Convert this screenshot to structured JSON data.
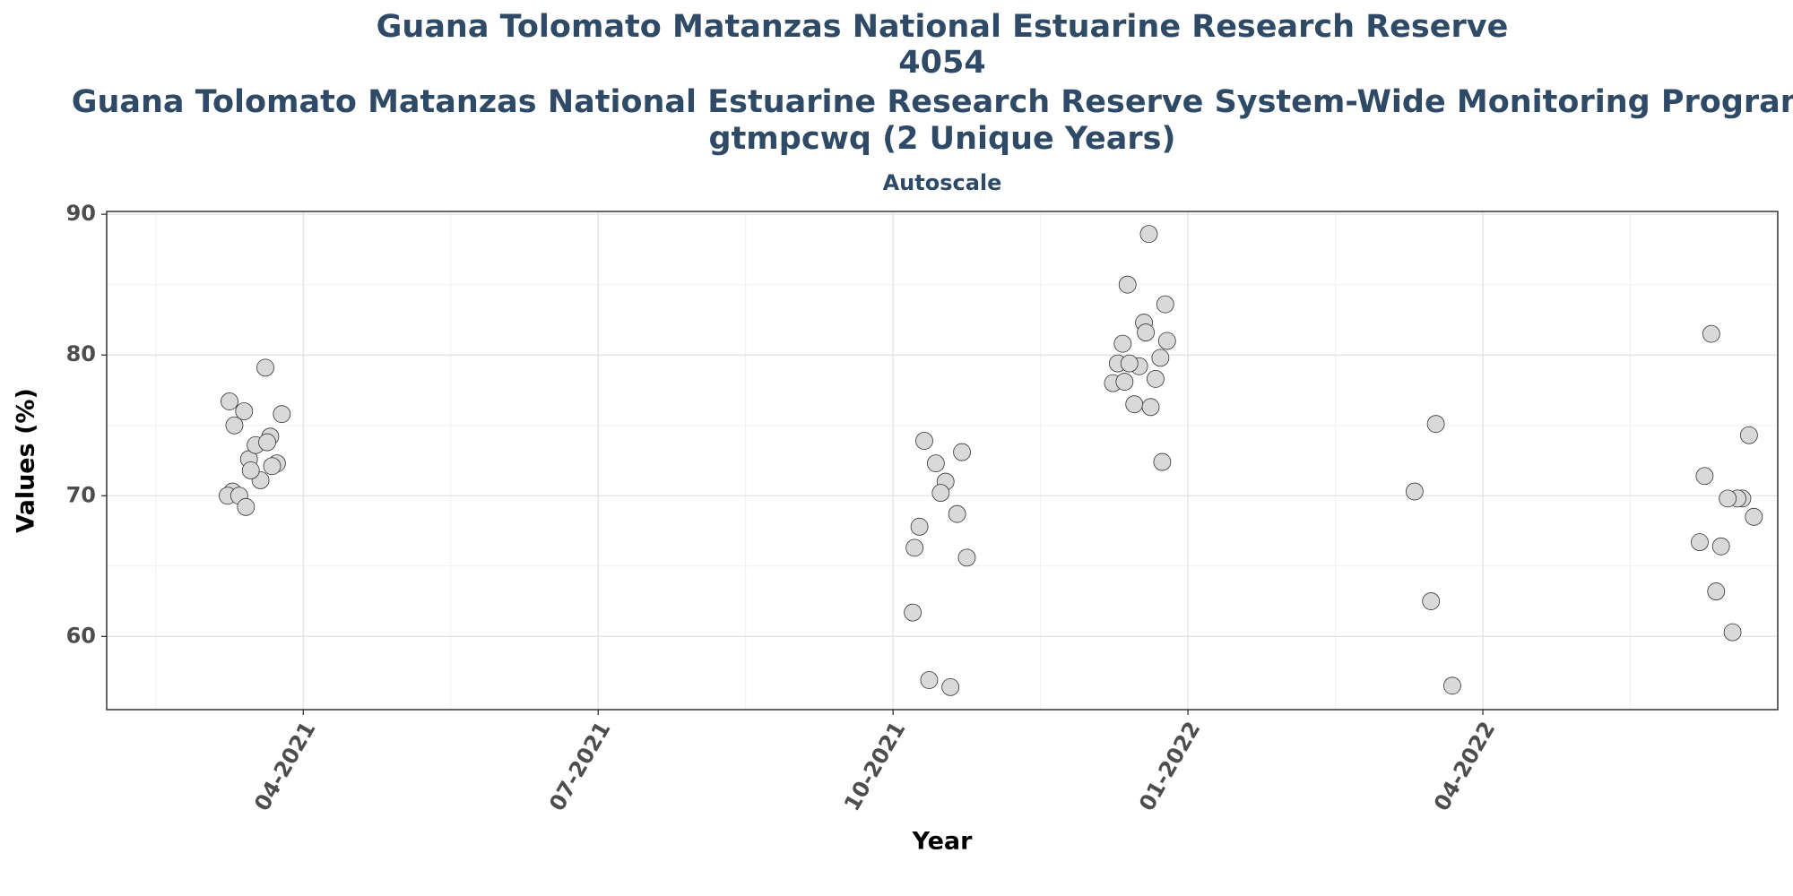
{
  "chart_data": {
    "type": "scatter",
    "title": [
      "Guana Tolomato Matanzas National Estuarine Research Reserve",
      "4054",
      "Guana Tolomato Matanzas National Estuarine Research Reserve System-Wide Monitoring Program",
      "gtmpcwq (2 Unique Years)"
    ],
    "subtitle": "Autoscale",
    "x_label": "Year",
    "y_label": "Values (%)",
    "x": [
      "03-2021",
      "03-2021",
      "03-2021",
      "03-2021",
      "03-2021",
      "03-2021",
      "03-2021",
      "03-2021",
      "03-2021",
      "03-2021",
      "03-2021",
      "03-2021",
      "03-2021",
      "03-2021",
      "03-2021",
      "03-2021",
      "03-2021",
      "10-2021",
      "10-2021",
      "10-2021",
      "10-2021",
      "10-2021",
      "10-2021",
      "10-2021",
      "10-2021",
      "10-2021",
      "10-2021",
      "10-2021",
      "10-2021",
      "12-2021",
      "12-2021",
      "12-2021",
      "12-2021",
      "12-2021",
      "12-2021",
      "12-2021",
      "12-2021",
      "12-2021",
      "12-2021",
      "12-2021",
      "12-2021",
      "12-2021",
      "12-2021",
      "12-2021",
      "12-2021",
      "12-2021",
      "03-2022",
      "03-2022",
      "03-2022",
      "03-2022",
      "06-2022",
      "06-2022",
      "06-2022",
      "06-2022",
      "06-2022",
      "06-2022",
      "06-2022",
      "06-2022",
      "06-2022",
      "06-2022",
      "06-2022"
    ],
    "series": [
      {
        "name": "Values",
        "color": "#d9d9d9",
        "values": [
          70.3,
          74.2,
          72.6,
          70.0,
          79.1,
          76.0,
          75.8,
          71.1,
          70.0,
          72.3,
          73.6,
          75.0,
          72.1,
          71.8,
          76.7,
          73.8,
          69.2,
          61.7,
          56.4,
          56.9,
          65.6,
          71.0,
          73.9,
          73.1,
          70.2,
          67.8,
          68.7,
          72.3,
          66.3,
          88.6,
          85.0,
          83.6,
          82.3,
          80.8,
          79.8,
          79.2,
          79.4,
          78.3,
          76.5,
          78.0,
          76.3,
          79.4,
          81.0,
          81.6,
          78.1,
          72.4,
          75.1,
          70.3,
          56.5,
          62.5,
          71.4,
          69.8,
          66.4,
          66.7,
          69.8,
          63.2,
          68.5,
          60.3,
          81.5,
          74.3,
          69.8
        ]
      }
    ],
    "xlim": [
      "02-2021",
      "06-2022"
    ],
    "xticks": [
      "04-2021",
      "07-2021",
      "10-2021",
      "01-2022",
      "04-2022"
    ],
    "ylim": [
      54.8,
      90.2
    ],
    "yticks": [
      60,
      70,
      80,
      90
    ],
    "grid": true
  }
}
